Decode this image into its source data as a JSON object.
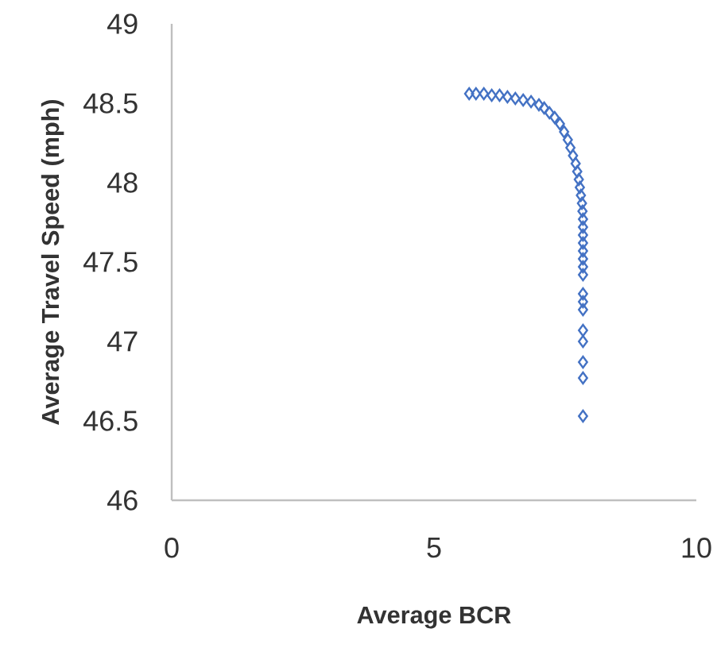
{
  "chart_data": {
    "type": "scatter",
    "xlabel": "Average BCR",
    "ylabel": "Average Travel Speed (mph)",
    "color": "#4472c4",
    "marker": "diamond",
    "grid": false,
    "xlim": [
      0,
      10
    ],
    "ylim": [
      46,
      49
    ],
    "xticks": [
      0,
      5,
      10
    ],
    "yticks": [
      46,
      46.5,
      47,
      47.5,
      48,
      48.5,
      49
    ],
    "x": [
      5.67,
      5.8,
      5.95,
      6.1,
      6.25,
      6.4,
      6.55,
      6.7,
      6.85,
      7.0,
      7.1,
      7.2,
      7.3,
      7.4,
      7.48,
      7.55,
      7.6,
      7.65,
      7.7,
      7.73,
      7.76,
      7.78,
      7.8,
      7.82,
      7.83,
      7.84,
      7.84,
      7.84,
      7.84,
      7.84,
      7.84,
      7.84,
      7.84,
      7.84,
      7.84,
      7.84,
      7.84,
      7.84,
      7.84,
      7.84,
      7.84
    ],
    "values": [
      48.56,
      48.56,
      48.56,
      48.55,
      48.55,
      48.54,
      48.53,
      48.52,
      48.51,
      48.49,
      48.47,
      48.44,
      48.41,
      48.37,
      48.32,
      48.27,
      48.22,
      48.17,
      48.12,
      48.07,
      48.02,
      47.97,
      47.92,
      47.87,
      47.82,
      47.77,
      47.72,
      47.67,
      47.62,
      47.57,
      47.52,
      47.47,
      47.42,
      47.3,
      47.25,
      47.2,
      47.07,
      47.0,
      46.87,
      46.77,
      46.53
    ]
  }
}
